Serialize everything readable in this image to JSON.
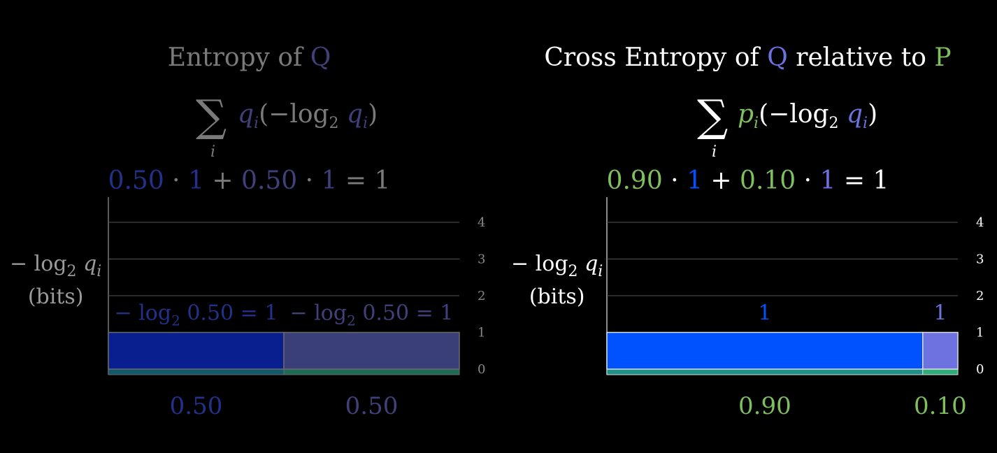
{
  "colors": {
    "blue_dim": "#22318a",
    "purple_dim": "#40407a",
    "gray_dim": "#7a7a7a",
    "blue_bright": "#0052ff",
    "purple_bright": "#6d72e0",
    "green": "#7fbf5f",
    "teal": "#2e8a7a",
    "white": "#ffffff",
    "grid": "#555555"
  },
  "left": {
    "title_prefix": "Entropy of ",
    "title_symbol": "Q",
    "sum_sub": "i",
    "term_weight": "q",
    "term_weight_sub": "i",
    "term_open": "(−",
    "term_log": "log",
    "term_log_sub": "2",
    "term_arg": "q",
    "term_arg_sub": "i",
    "term_close": ")",
    "eq_w1": "0.50",
    "eq_dot1": " · ",
    "eq_v1": "1",
    "eq_plus": " + ",
    "eq_w2": "0.50",
    "eq_dot2": " · ",
    "eq_v2": "1",
    "eq_equals": " = ",
    "eq_result": "1",
    "ylabel_line1_prefix": "− log",
    "ylabel_line1_sub": "2",
    "ylabel_line1_var": " q",
    "ylabel_line1_varsub": "i",
    "ylabel_line2": "(bits)"
  },
  "right": {
    "title_prefix": "Cross Entropy of ",
    "title_symbol": "Q",
    "title_middle": " relative to ",
    "title_symbol2": "P",
    "sum_sub": "i",
    "term_weight": "p",
    "term_weight_sub": "i",
    "term_open": "(−",
    "term_log": "log",
    "term_log_sub": "2",
    "term_arg": "q",
    "term_arg_sub": "i",
    "term_close": ")",
    "eq_w1": "0.90",
    "eq_dot1": " · ",
    "eq_v1": "1",
    "eq_plus": " + ",
    "eq_w2": "0.10",
    "eq_dot2": " · ",
    "eq_v2": "1",
    "eq_equals": " = ",
    "eq_result": "1",
    "ylabel_line1_prefix": "− log",
    "ylabel_line1_sub": "2",
    "ylabel_line1_var": " q",
    "ylabel_line1_varsub": "i",
    "ylabel_line2": "(bits)"
  },
  "chart_data": [
    {
      "type": "bar",
      "title": "Entropy of Q",
      "ylabel": "− log2 qi (bits)",
      "yticks": [
        0,
        1,
        2,
        3,
        4
      ],
      "ylim": [
        0,
        4
      ],
      "grid": true,
      "categories": [
        "0.50",
        "0.50"
      ],
      "widths": [
        0.5,
        0.5
      ],
      "values": [
        1,
        1
      ],
      "bar_labels": [
        "− log2 0.50 = 1",
        "− log2 0.50 = 1"
      ],
      "bar_label_prefix": "− log",
      "bar_label_sub": "2",
      "bar_label_suffixes": [
        " 0.50 = 1",
        " 0.50 = 1"
      ]
    },
    {
      "type": "bar",
      "title": "Cross Entropy of Q relative to P",
      "ylabel": "− log2 qi (bits)",
      "yticks": [
        0,
        1,
        2,
        3,
        4
      ],
      "ylim": [
        0,
        4
      ],
      "grid": true,
      "categories": [
        "0.90",
        "0.10"
      ],
      "widths": [
        0.9,
        0.1
      ],
      "values": [
        1,
        1
      ],
      "bar_labels": [
        "1",
        "1"
      ]
    }
  ]
}
